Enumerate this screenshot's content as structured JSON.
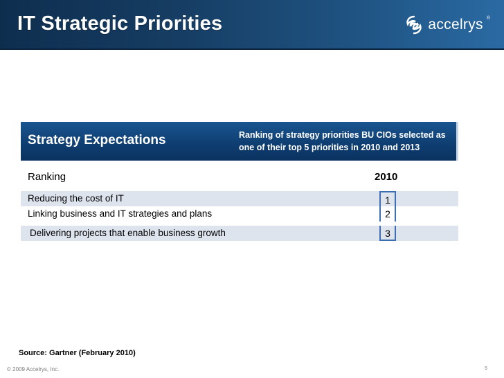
{
  "header": {
    "title": "IT Strategic Priorities",
    "logo": {
      "text": "accelrys",
      "reg": "®",
      "icon": "swirl-logo-icon"
    }
  },
  "banner": {
    "title": "Strategy Expectations",
    "description": "Ranking of strategy priorities BU CIOs selected as one of their top 5 priorities in 2010 and 2013"
  },
  "table": {
    "ranking_header": "Ranking",
    "year_header": "2010",
    "rows": [
      {
        "label": "Reducing the cost of IT",
        "rank": "1"
      },
      {
        "label": "Linking business and IT strategies and plans",
        "rank": "2"
      },
      {
        "label": "Delivering projects that enable business growth",
        "rank": "3"
      }
    ]
  },
  "footer": {
    "source": "Source: Gartner (February 2010)",
    "copyright": "© 2009 Accelrys, Inc.",
    "page_number": "5"
  }
}
